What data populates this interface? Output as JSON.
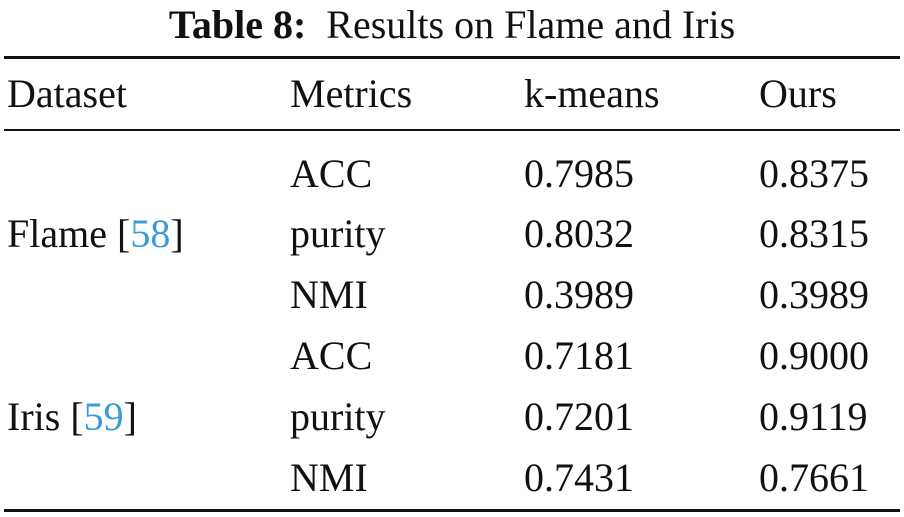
{
  "caption": {
    "label": "Table 8:",
    "text": "Results on Flame and Iris"
  },
  "headers": [
    "Dataset",
    "Metrics",
    "k-means",
    "Ours"
  ],
  "groups": [
    {
      "dataset": "Flame",
      "citation": "58",
      "rows": [
        {
          "metric": "ACC",
          "kmeans": "0.7985",
          "ours": "0.8375"
        },
        {
          "metric": "purity",
          "kmeans": "0.8032",
          "ours": "0.8315"
        },
        {
          "metric": "NMI",
          "kmeans": "0.3989",
          "ours": "0.3989"
        }
      ]
    },
    {
      "dataset": "Iris",
      "citation": "59",
      "rows": [
        {
          "metric": "ACC",
          "kmeans": "0.7181",
          "ours": "0.9000"
        },
        {
          "metric": "purity",
          "kmeans": "0.7201",
          "ours": "0.9119"
        },
        {
          "metric": "NMI",
          "kmeans": "0.7431",
          "ours": "0.7661"
        }
      ]
    }
  ],
  "colors": {
    "citation": "#3a9bd8",
    "text": "#111111"
  }
}
